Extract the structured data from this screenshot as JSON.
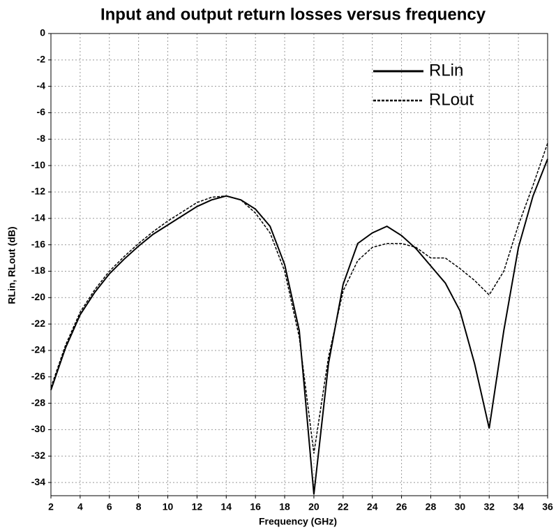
{
  "chart_data": {
    "type": "line",
    "title": "Input and output return losses versus frequency",
    "xlabel": "Frequency (GHz)",
    "ylabel": "RLin, RLout (dB)",
    "x": [
      2,
      3,
      4,
      5,
      6,
      7,
      8,
      9,
      10,
      11,
      12,
      13,
      14,
      15,
      16,
      17,
      18,
      19,
      20,
      21,
      22,
      23,
      24,
      25,
      26,
      27,
      28,
      29,
      30,
      31,
      32,
      33,
      34,
      35,
      36
    ],
    "series": [
      {
        "name": "RLin",
        "color": "#000000",
        "line_style": "solid",
        "values": [
          -27,
          -23.8,
          -21.3,
          -19.6,
          -18.2,
          -17.1,
          -16.1,
          -15.2,
          -14.5,
          -13.8,
          -13.1,
          -12.6,
          -12.3,
          -12.6,
          -13.3,
          -14.6,
          -17.5,
          -22.5,
          -34.9,
          -25,
          -19,
          -15.9,
          -15.1,
          -14.6,
          -15.3,
          -16.3,
          -17.6,
          -18.9,
          -21,
          -25,
          -29.9,
          -22.5,
          -16.2,
          -12.3,
          -9.5
        ]
      },
      {
        "name": "RLout",
        "color": "#000000",
        "line_style": "dashed",
        "values": [
          -26.8,
          -23.6,
          -21.1,
          -19.4,
          -18,
          -16.9,
          -15.9,
          -15,
          -14.2,
          -13.5,
          -12.8,
          -12.4,
          -12.3,
          -12.6,
          -13.6,
          -15.1,
          -18,
          -23,
          -31.8,
          -24.5,
          -19.5,
          -17.2,
          -16.2,
          -15.9,
          -15.9,
          -16.2,
          -17,
          -17,
          -17.8,
          -18.7,
          -19.8,
          -18,
          -14.5,
          -11.5,
          -8.3
        ]
      }
    ],
    "xlim": [
      2,
      36
    ],
    "xticks": [
      2,
      4,
      6,
      8,
      10,
      12,
      14,
      16,
      18,
      20,
      22,
      24,
      26,
      28,
      30,
      32,
      34,
      36
    ],
    "ylim": [
      -35,
      0
    ],
    "yticks": [
      0,
      -2,
      -4,
      -6,
      -8,
      -10,
      -12,
      -14,
      -16,
      -18,
      -20,
      -22,
      -24,
      -26,
      -28,
      -30,
      -32,
      -34
    ],
    "grid": true,
    "legend": "upper right"
  }
}
